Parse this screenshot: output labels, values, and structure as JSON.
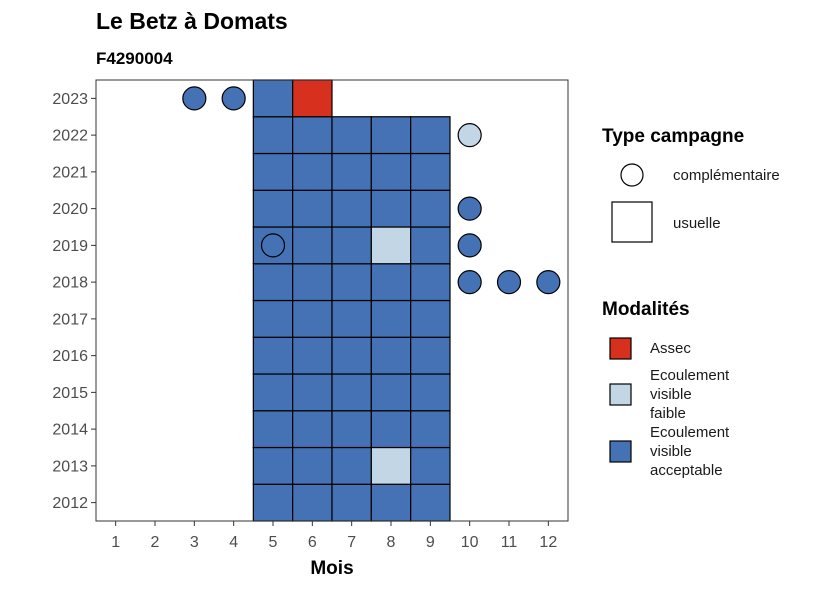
{
  "chart_data": {
    "type": "heatmap",
    "title": "Le Betz à Domats",
    "subtitle": "F4290004",
    "xlabel": "Mois",
    "ylabel": "",
    "x_ticks": [
      1,
      2,
      3,
      4,
      5,
      6,
      7,
      8,
      9,
      10,
      11,
      12
    ],
    "y_ticks": [
      2012,
      2013,
      2014,
      2015,
      2016,
      2017,
      2018,
      2019,
      2020,
      2021,
      2022,
      2023
    ],
    "xlim": [
      0.5,
      12.5
    ],
    "ylim": [
      2011.5,
      2023.5
    ],
    "grid": false,
    "colors": {
      "Assec": "#d7301f",
      "Ecoulement visible faible": "#c2d6e5",
      "Ecoulement visible acceptable": "#4472b4"
    },
    "legend_campagne": {
      "title": "Type campagne",
      "items": [
        {
          "label": "complémentaire",
          "shape": "circle"
        },
        {
          "label": "usuelle",
          "shape": "square"
        }
      ]
    },
    "legend_modalites": {
      "title": "Modalités",
      "items": [
        {
          "label": "Assec",
          "lines": [
            "Assec"
          ]
        },
        {
          "label": "Ecoulement visible faible",
          "lines": [
            "Ecoulement",
            "visible",
            "faible"
          ]
        },
        {
          "label": "Ecoulement visible acceptable",
          "lines": [
            "Ecoulement",
            "visible",
            "acceptable"
          ]
        }
      ]
    },
    "legend_position": "right",
    "points": [
      {
        "year": 2012,
        "month": 5,
        "campagne": "usuelle",
        "modalite": "Ecoulement visible acceptable"
      },
      {
        "year": 2012,
        "month": 6,
        "campagne": "usuelle",
        "modalite": "Ecoulement visible acceptable"
      },
      {
        "year": 2012,
        "month": 7,
        "campagne": "usuelle",
        "modalite": "Ecoulement visible acceptable"
      },
      {
        "year": 2012,
        "month": 8,
        "campagne": "usuelle",
        "modalite": "Ecoulement visible acceptable"
      },
      {
        "year": 2012,
        "month": 9,
        "campagne": "usuelle",
        "modalite": "Ecoulement visible acceptable"
      },
      {
        "year": 2013,
        "month": 5,
        "campagne": "usuelle",
        "modalite": "Ecoulement visible acceptable"
      },
      {
        "year": 2013,
        "month": 6,
        "campagne": "usuelle",
        "modalite": "Ecoulement visible acceptable"
      },
      {
        "year": 2013,
        "month": 7,
        "campagne": "usuelle",
        "modalite": "Ecoulement visible acceptable"
      },
      {
        "year": 2013,
        "month": 8,
        "campagne": "usuelle",
        "modalite": "Ecoulement visible faible"
      },
      {
        "year": 2013,
        "month": 9,
        "campagne": "usuelle",
        "modalite": "Ecoulement visible acceptable"
      },
      {
        "year": 2014,
        "month": 5,
        "campagne": "usuelle",
        "modalite": "Ecoulement visible acceptable"
      },
      {
        "year": 2014,
        "month": 6,
        "campagne": "usuelle",
        "modalite": "Ecoulement visible acceptable"
      },
      {
        "year": 2014,
        "month": 7,
        "campagne": "usuelle",
        "modalite": "Ecoulement visible acceptable"
      },
      {
        "year": 2014,
        "month": 8,
        "campagne": "usuelle",
        "modalite": "Ecoulement visible acceptable"
      },
      {
        "year": 2014,
        "month": 9,
        "campagne": "usuelle",
        "modalite": "Ecoulement visible acceptable"
      },
      {
        "year": 2015,
        "month": 5,
        "campagne": "usuelle",
        "modalite": "Ecoulement visible acceptable"
      },
      {
        "year": 2015,
        "month": 6,
        "campagne": "usuelle",
        "modalite": "Ecoulement visible acceptable"
      },
      {
        "year": 2015,
        "month": 7,
        "campagne": "usuelle",
        "modalite": "Ecoulement visible acceptable"
      },
      {
        "year": 2015,
        "month": 8,
        "campagne": "usuelle",
        "modalite": "Ecoulement visible acceptable"
      },
      {
        "year": 2015,
        "month": 9,
        "campagne": "usuelle",
        "modalite": "Ecoulement visible acceptable"
      },
      {
        "year": 2016,
        "month": 5,
        "campagne": "usuelle",
        "modalite": "Ecoulement visible acceptable"
      },
      {
        "year": 2016,
        "month": 6,
        "campagne": "usuelle",
        "modalite": "Ecoulement visible acceptable"
      },
      {
        "year": 2016,
        "month": 7,
        "campagne": "usuelle",
        "modalite": "Ecoulement visible acceptable"
      },
      {
        "year": 2016,
        "month": 8,
        "campagne": "usuelle",
        "modalite": "Ecoulement visible acceptable"
      },
      {
        "year": 2016,
        "month": 9,
        "campagne": "usuelle",
        "modalite": "Ecoulement visible acceptable"
      },
      {
        "year": 2017,
        "month": 5,
        "campagne": "usuelle",
        "modalite": "Ecoulement visible acceptable"
      },
      {
        "year": 2017,
        "month": 6,
        "campagne": "usuelle",
        "modalite": "Ecoulement visible acceptable"
      },
      {
        "year": 2017,
        "month": 7,
        "campagne": "usuelle",
        "modalite": "Ecoulement visible acceptable"
      },
      {
        "year": 2017,
        "month": 8,
        "campagne": "usuelle",
        "modalite": "Ecoulement visible acceptable"
      },
      {
        "year": 2017,
        "month": 9,
        "campagne": "usuelle",
        "modalite": "Ecoulement visible acceptable"
      },
      {
        "year": 2018,
        "month": 5,
        "campagne": "usuelle",
        "modalite": "Ecoulement visible acceptable"
      },
      {
        "year": 2018,
        "month": 6,
        "campagne": "usuelle",
        "modalite": "Ecoulement visible acceptable"
      },
      {
        "year": 2018,
        "month": 7,
        "campagne": "usuelle",
        "modalite": "Ecoulement visible acceptable"
      },
      {
        "year": 2018,
        "month": 8,
        "campagne": "usuelle",
        "modalite": "Ecoulement visible acceptable"
      },
      {
        "year": 2018,
        "month": 9,
        "campagne": "usuelle",
        "modalite": "Ecoulement visible acceptable"
      },
      {
        "year": 2018,
        "month": 10,
        "campagne": "complémentaire",
        "modalite": "Ecoulement visible acceptable"
      },
      {
        "year": 2018,
        "month": 11,
        "campagne": "complémentaire",
        "modalite": "Ecoulement visible acceptable"
      },
      {
        "year": 2018,
        "month": 12,
        "campagne": "complémentaire",
        "modalite": "Ecoulement visible acceptable"
      },
      {
        "year": 2019,
        "month": 5,
        "campagne": "usuelle",
        "modalite": "Ecoulement visible acceptable"
      },
      {
        "year": 2019,
        "month": 5,
        "campagne": "complémentaire",
        "modalite": "Ecoulement visible acceptable"
      },
      {
        "year": 2019,
        "month": 6,
        "campagne": "usuelle",
        "modalite": "Ecoulement visible acceptable"
      },
      {
        "year": 2019,
        "month": 7,
        "campagne": "usuelle",
        "modalite": "Ecoulement visible acceptable"
      },
      {
        "year": 2019,
        "month": 8,
        "campagne": "usuelle",
        "modalite": "Ecoulement visible faible"
      },
      {
        "year": 2019,
        "month": 9,
        "campagne": "usuelle",
        "modalite": "Ecoulement visible acceptable"
      },
      {
        "year": 2019,
        "month": 10,
        "campagne": "complémentaire",
        "modalite": "Ecoulement visible acceptable"
      },
      {
        "year": 2020,
        "month": 5,
        "campagne": "usuelle",
        "modalite": "Ecoulement visible acceptable"
      },
      {
        "year": 2020,
        "month": 6,
        "campagne": "usuelle",
        "modalite": "Ecoulement visible acceptable"
      },
      {
        "year": 2020,
        "month": 7,
        "campagne": "usuelle",
        "modalite": "Ecoulement visible acceptable"
      },
      {
        "year": 2020,
        "month": 8,
        "campagne": "usuelle",
        "modalite": "Ecoulement visible acceptable"
      },
      {
        "year": 2020,
        "month": 9,
        "campagne": "usuelle",
        "modalite": "Ecoulement visible acceptable"
      },
      {
        "year": 2020,
        "month": 10,
        "campagne": "complémentaire",
        "modalite": "Ecoulement visible acceptable"
      },
      {
        "year": 2021,
        "month": 5,
        "campagne": "usuelle",
        "modalite": "Ecoulement visible acceptable"
      },
      {
        "year": 2021,
        "month": 6,
        "campagne": "usuelle",
        "modalite": "Ecoulement visible acceptable"
      },
      {
        "year": 2021,
        "month": 7,
        "campagne": "usuelle",
        "modalite": "Ecoulement visible acceptable"
      },
      {
        "year": 2021,
        "month": 8,
        "campagne": "usuelle",
        "modalite": "Ecoulement visible acceptable"
      },
      {
        "year": 2021,
        "month": 9,
        "campagne": "usuelle",
        "modalite": "Ecoulement visible acceptable"
      },
      {
        "year": 2022,
        "month": 5,
        "campagne": "usuelle",
        "modalite": "Ecoulement visible acceptable"
      },
      {
        "year": 2022,
        "month": 6,
        "campagne": "usuelle",
        "modalite": "Ecoulement visible acceptable"
      },
      {
        "year": 2022,
        "month": 7,
        "campagne": "usuelle",
        "modalite": "Ecoulement visible acceptable"
      },
      {
        "year": 2022,
        "month": 8,
        "campagne": "usuelle",
        "modalite": "Ecoulement visible acceptable"
      },
      {
        "year": 2022,
        "month": 9,
        "campagne": "usuelle",
        "modalite": "Ecoulement visible acceptable"
      },
      {
        "year": 2022,
        "month": 10,
        "campagne": "complémentaire",
        "modalite": "Ecoulement visible faible"
      },
      {
        "year": 2023,
        "month": 3,
        "campagne": "complémentaire",
        "modalite": "Ecoulement visible acceptable"
      },
      {
        "year": 2023,
        "month": 4,
        "campagne": "complémentaire",
        "modalite": "Ecoulement visible acceptable"
      },
      {
        "year": 2023,
        "month": 5,
        "campagne": "usuelle",
        "modalite": "Ecoulement visible acceptable"
      },
      {
        "year": 2023,
        "month": 6,
        "campagne": "usuelle",
        "modalite": "Assec"
      }
    ]
  }
}
